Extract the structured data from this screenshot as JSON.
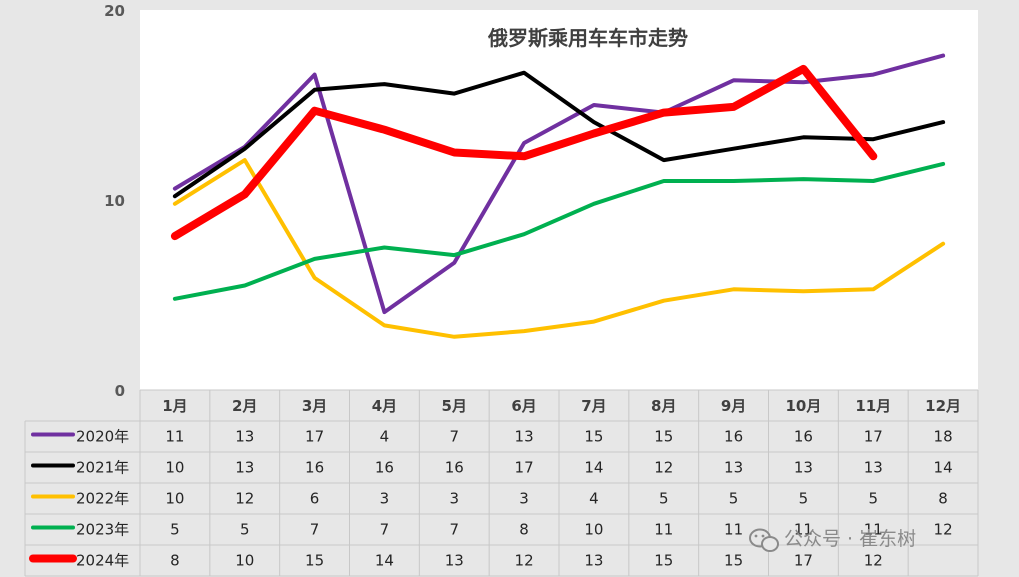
{
  "chart_data": {
    "type": "line",
    "title": "俄罗斯乘用车车市走势",
    "ylim": [
      0,
      20
    ],
    "yticks": [
      0,
      10,
      20
    ],
    "grid": false,
    "legend": "data-table",
    "categories": [
      "1月",
      "2月",
      "3月",
      "4月",
      "5月",
      "6月",
      "7月",
      "8月",
      "9月",
      "10月",
      "11月",
      "12月"
    ],
    "series": [
      {
        "name": "2020年",
        "color": "#7030a0",
        "values": [
          10.6,
          12.8,
          16.6,
          4.1,
          6.7,
          13.0,
          15.0,
          14.6,
          16.3,
          16.2,
          16.6,
          17.6
        ],
        "labels": [
          "11",
          "13",
          "17",
          "4",
          "7",
          "13",
          "15",
          "15",
          "16",
          "16",
          "17",
          "18"
        ]
      },
      {
        "name": "2021年",
        "color": "#000000",
        "values": [
          10.2,
          12.7,
          15.8,
          16.1,
          15.6,
          16.7,
          14.1,
          12.1,
          12.7,
          13.3,
          13.2,
          14.1
        ],
        "labels": [
          "10",
          "13",
          "16",
          "16",
          "16",
          "17",
          "14",
          "12",
          "13",
          "13",
          "13",
          "14"
        ]
      },
      {
        "name": "2022年",
        "color": "#ffc000",
        "values": [
          9.8,
          12.1,
          5.9,
          3.4,
          2.8,
          3.1,
          3.6,
          4.7,
          5.3,
          5.2,
          5.3,
          7.7
        ],
        "labels": [
          "10",
          "12",
          "6",
          "3",
          "3",
          "3",
          "4",
          "5",
          "5",
          "5",
          "5",
          "8"
        ]
      },
      {
        "name": "2023年",
        "color": "#00b050",
        "values": [
          4.8,
          5.5,
          6.9,
          7.5,
          7.1,
          8.2,
          9.8,
          11.0,
          11.0,
          11.1,
          11.0,
          11.9
        ],
        "labels": [
          "5",
          "5",
          "7",
          "7",
          "7",
          "8",
          "10",
          "11",
          "11",
          "11",
          "11",
          "12"
        ]
      },
      {
        "name": "2024年",
        "color": "#ff0000",
        "values": [
          8.1,
          10.3,
          14.7,
          13.7,
          12.5,
          12.3,
          13.5,
          14.6,
          14.9,
          16.9,
          12.3,
          null
        ],
        "labels": [
          "8",
          "10",
          "15",
          "14",
          "13",
          "12",
          "13",
          "15",
          "15",
          "17",
          "12",
          ""
        ]
      }
    ]
  },
  "watermark": {
    "icon": "wechat-icon",
    "text": "公众号 · 崔东树"
  }
}
